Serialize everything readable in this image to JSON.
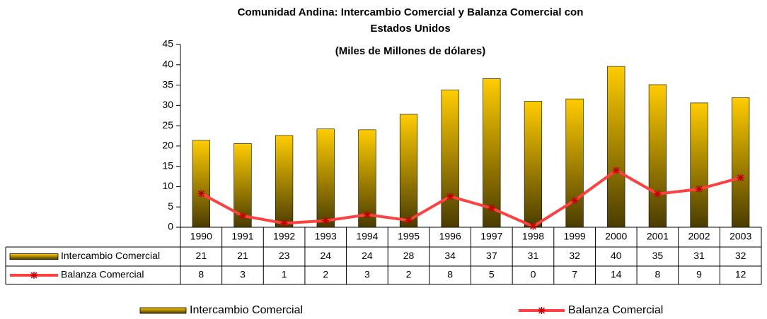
{
  "chart_data": {
    "type": "bar-line",
    "title": [
      "Comunidad Andina: Intercambio Comercial y Balanza Comercial con",
      "Estados Unidos"
    ],
    "subtitle": "(Miles de Millones de dólares)",
    "categories": [
      "1990",
      "1991",
      "1992",
      "1993",
      "1994",
      "1995",
      "1996",
      "1997",
      "1998",
      "1999",
      "2000",
      "2001",
      "2002",
      "2003"
    ],
    "series": [
      {
        "name": "Intercambio Comercial",
        "type": "bar",
        "color": "#ffcc00",
        "values": [
          21.4,
          20.6,
          22.6,
          24.2,
          24.0,
          27.8,
          33.8,
          36.6,
          31.0,
          31.6,
          39.6,
          35.1,
          30.6,
          31.9
        ],
        "value_labels": [
          "21",
          "21",
          "23",
          "24",
          "24",
          "28",
          "34",
          "37",
          "31",
          "32",
          "40",
          "35",
          "31",
          "32"
        ]
      },
      {
        "name": "Balanza Comercial",
        "type": "line",
        "color": "#ff4040",
        "values": [
          8.3,
          2.8,
          1.0,
          1.6,
          3.1,
          1.7,
          7.6,
          4.7,
          0.2,
          6.6,
          14.0,
          8.2,
          9.4,
          12.2
        ],
        "value_labels": [
          "8",
          "3",
          "1",
          "2",
          "3",
          "2",
          "8",
          "5",
          "0",
          "7",
          "14",
          "8",
          "9",
          "12"
        ]
      }
    ],
    "ylim": [
      0,
      45
    ],
    "yticks": [
      0,
      5,
      10,
      15,
      20,
      25,
      30,
      35,
      40,
      45
    ],
    "grid": false
  }
}
